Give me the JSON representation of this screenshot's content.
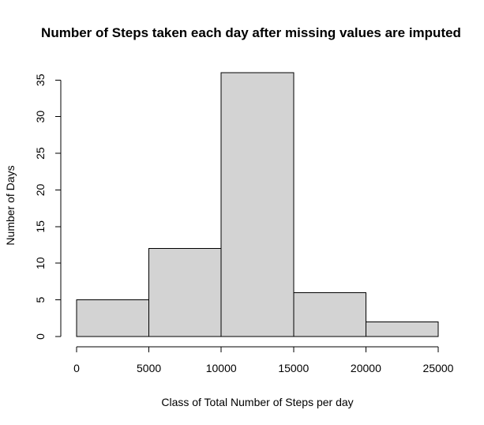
{
  "chart_data": {
    "type": "bar",
    "title": "Number of Steps taken each day after missing values are imputed",
    "xlabel": "Class of Total Number of Steps per day",
    "ylabel": "Number of Days",
    "bins": [
      {
        "from": 0,
        "to": 5000,
        "count": 5
      },
      {
        "from": 5000,
        "to": 10000,
        "count": 12
      },
      {
        "from": 10000,
        "to": 15000,
        "count": 36
      },
      {
        "from": 15000,
        "to": 20000,
        "count": 6
      },
      {
        "from": 20000,
        "to": 25000,
        "count": 2
      }
    ],
    "xlim": [
      0,
      25000
    ],
    "ylim": [
      0,
      36
    ],
    "x_ticks": [
      "0",
      "5000",
      "10000",
      "15000",
      "20000",
      "25000"
    ],
    "y_ticks": [
      "0",
      "5",
      "10",
      "15",
      "20",
      "25",
      "30",
      "35"
    ],
    "grid": false,
    "bar_color": "#d3d3d3",
    "bar_border_color": "#000000"
  }
}
